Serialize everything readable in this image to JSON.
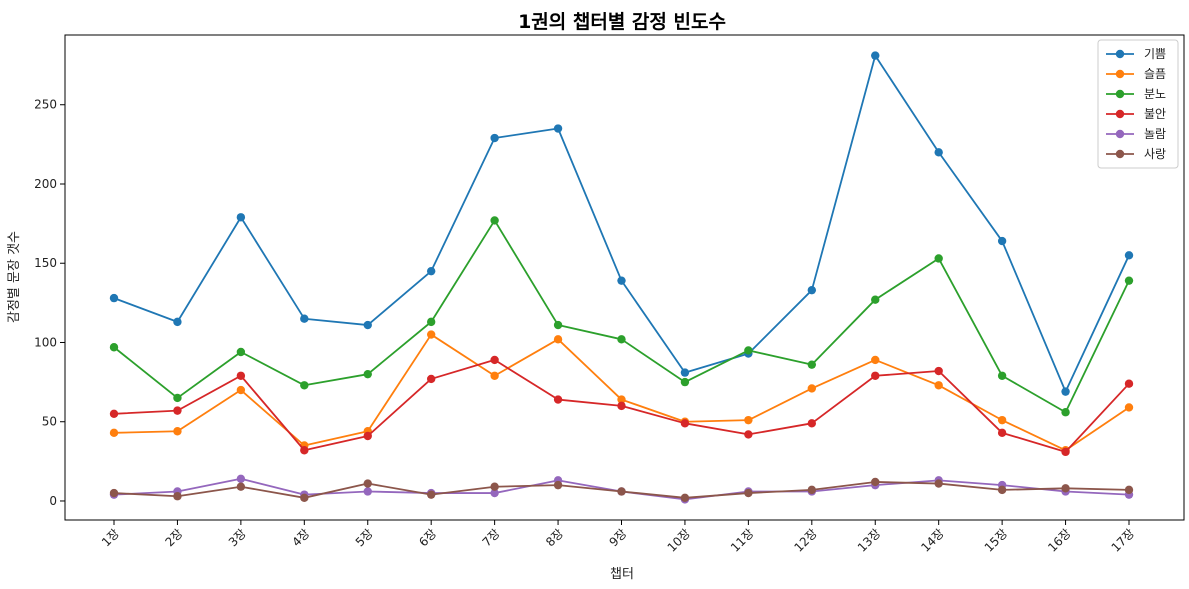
{
  "chart_data": {
    "type": "line",
    "title": "1권의 챕터별 감정 빈도수",
    "xlabel": "챕터",
    "ylabel": "감정별 문장 갯수",
    "categories": [
      "1장",
      "2장",
      "3장",
      "4장",
      "5장",
      "6장",
      "7장",
      "8장",
      "9장",
      "10장",
      "11장",
      "12장",
      "13장",
      "14장",
      "15장",
      "16장",
      "17장"
    ],
    "ylim": [
      -12,
      294
    ],
    "yticks": [
      0,
      50,
      100,
      150,
      200,
      250
    ],
    "legend_position": "top-right",
    "series": [
      {
        "name": "기쁨",
        "color": "#1f77b4",
        "values": [
          128,
          113,
          179,
          115,
          111,
          145,
          229,
          235,
          139,
          81,
          93,
          133,
          281,
          220,
          164,
          69,
          155
        ]
      },
      {
        "name": "슬픔",
        "color": "#ff7f0e",
        "values": [
          43,
          44,
          70,
          35,
          44,
          105,
          79,
          102,
          64,
          50,
          51,
          71,
          89,
          73,
          51,
          32,
          59
        ]
      },
      {
        "name": "분노",
        "color": "#2ca02c",
        "values": [
          97,
          65,
          94,
          73,
          80,
          113,
          177,
          111,
          102,
          75,
          95,
          86,
          127,
          153,
          79,
          56,
          139
        ]
      },
      {
        "name": "불안",
        "color": "#d62728",
        "values": [
          55,
          57,
          79,
          32,
          41,
          77,
          89,
          64,
          60,
          49,
          42,
          49,
          79,
          82,
          43,
          31,
          74
        ]
      },
      {
        "name": "놀람",
        "color": "#9467bd",
        "values": [
          4,
          6,
          14,
          4,
          6,
          5,
          5,
          13,
          6,
          1,
          6,
          6,
          10,
          13,
          10,
          6,
          4
        ]
      },
      {
        "name": "사랑",
        "color": "#8c564b",
        "values": [
          5,
          3,
          9,
          2,
          11,
          4,
          9,
          10,
          6,
          2,
          5,
          7,
          12,
          11,
          7,
          8,
          7
        ]
      }
    ]
  }
}
